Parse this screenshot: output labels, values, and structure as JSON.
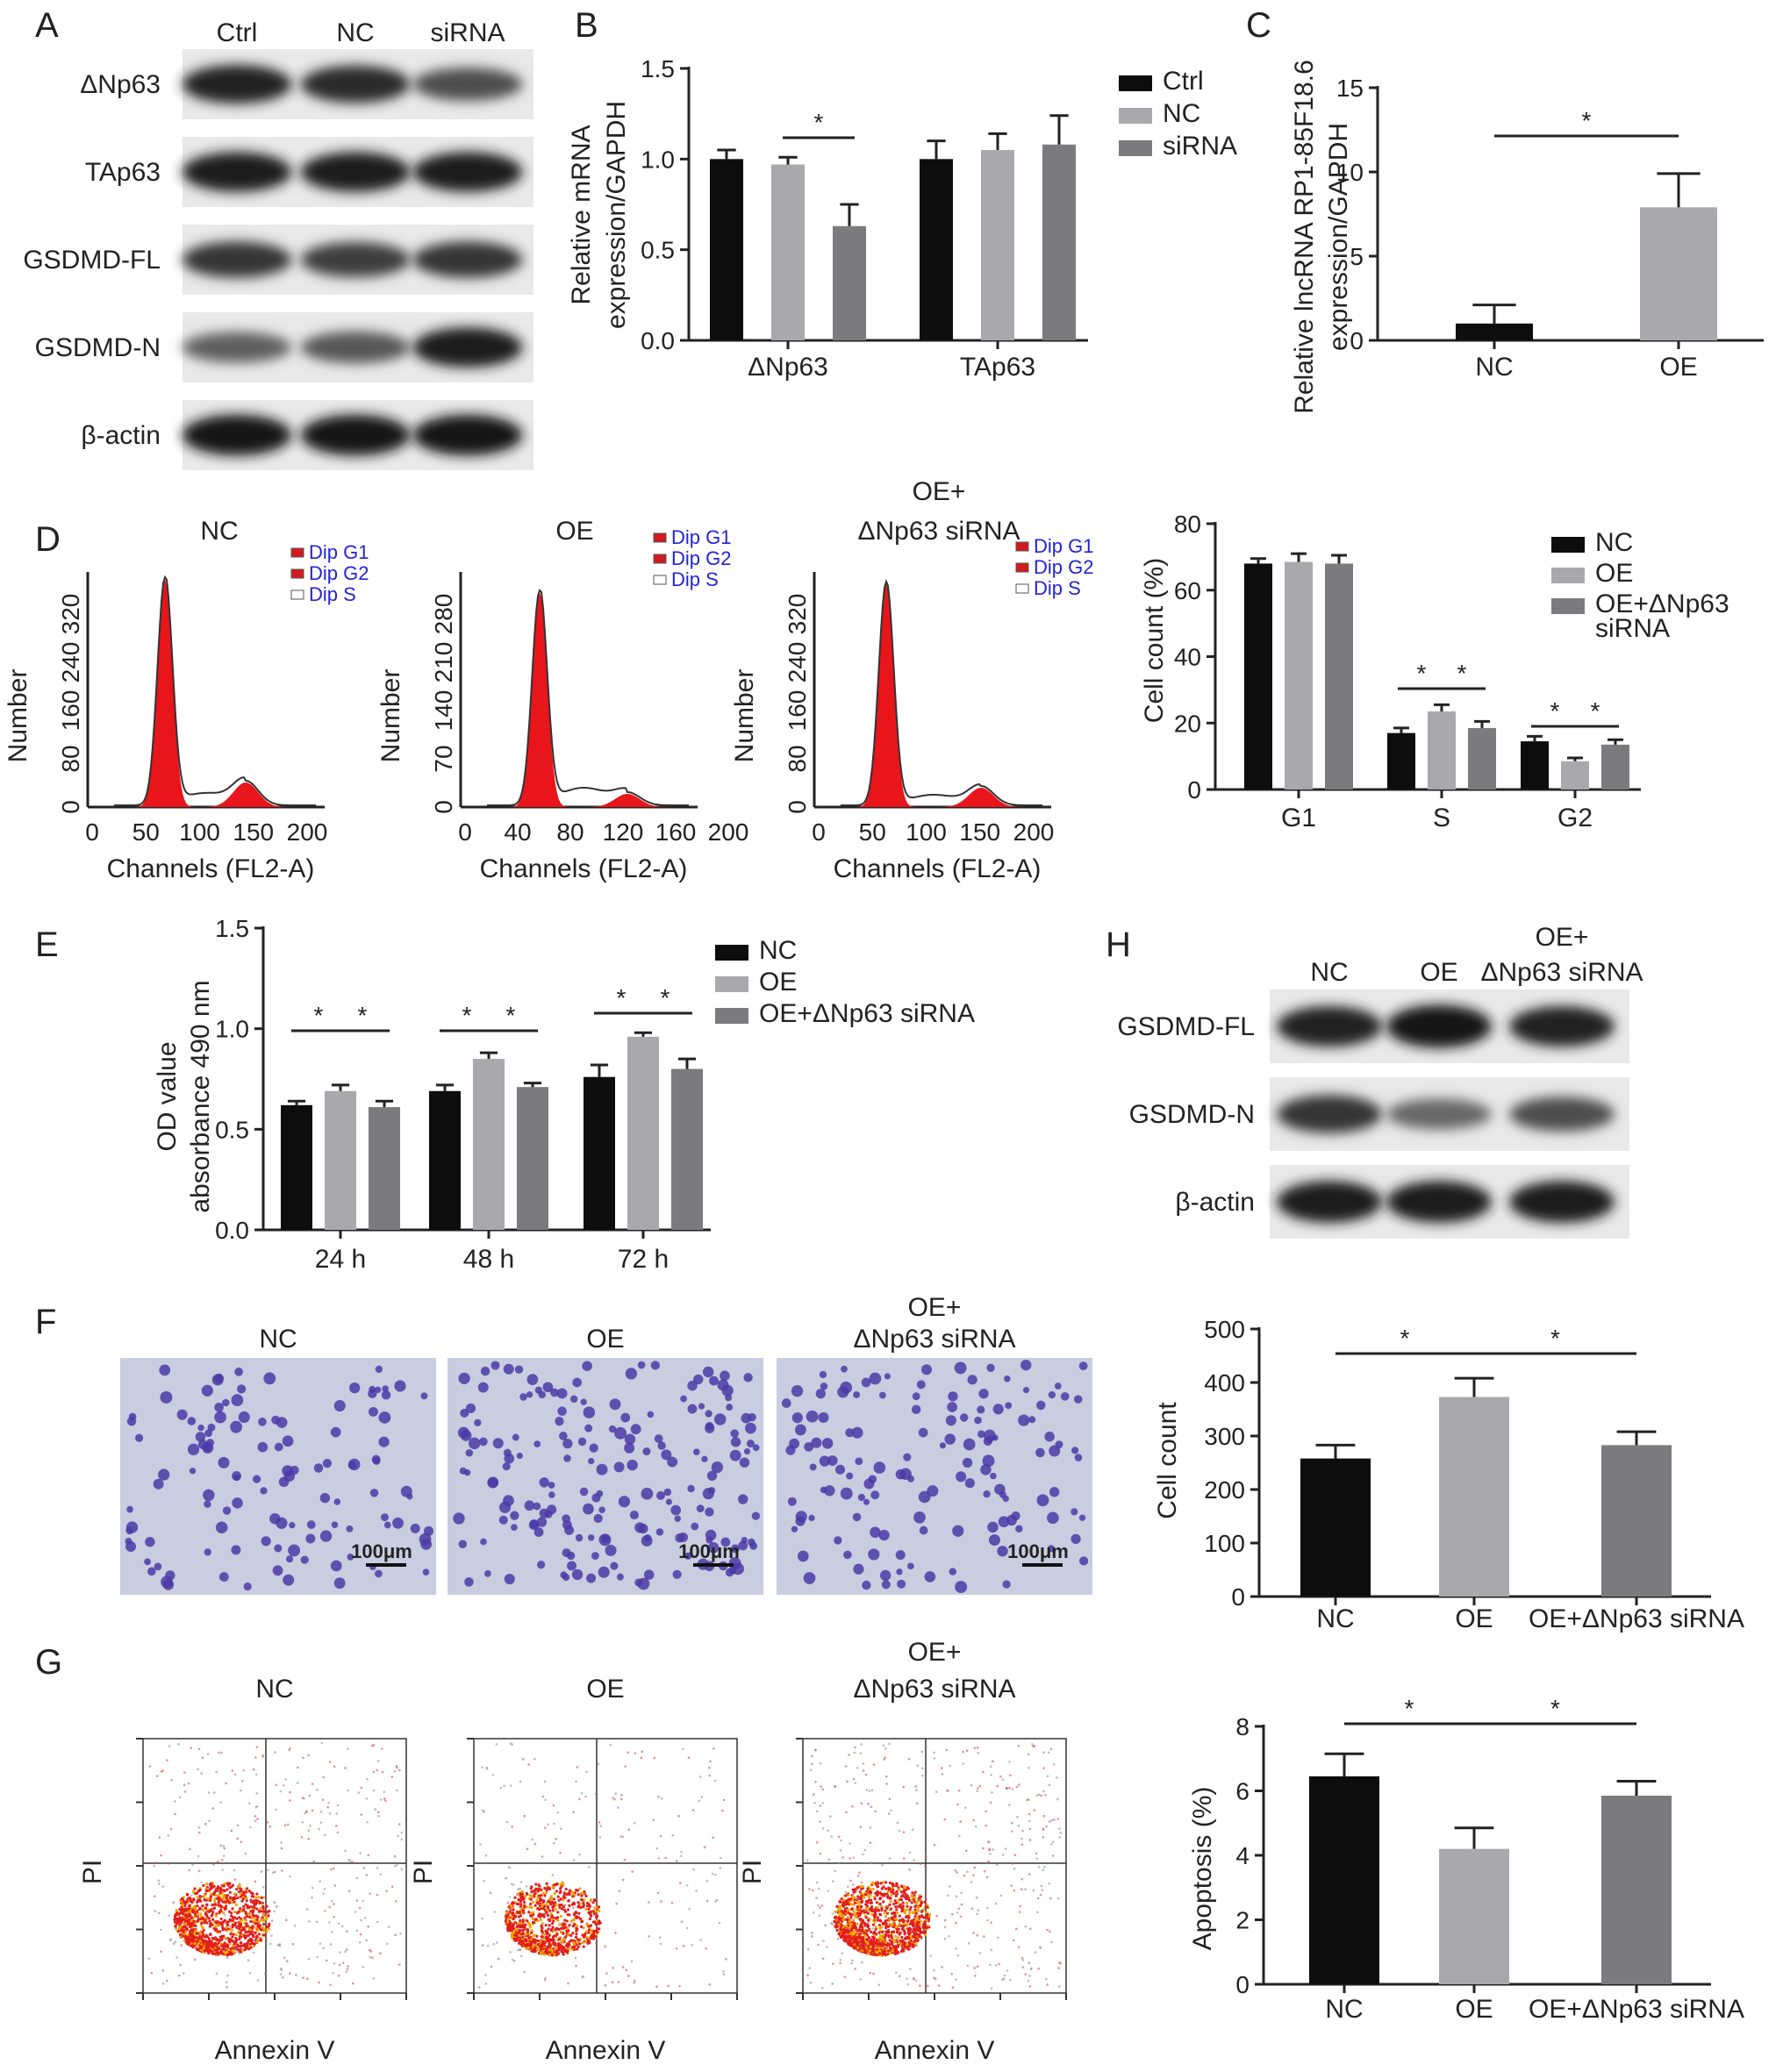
{
  "panels": {
    "A": {
      "label": "A",
      "lanes": [
        "Ctrl",
        "NC",
        "siRNA"
      ],
      "rows": [
        {
          "label": "ΔNp63",
          "intensities": [
            0.85,
            0.8,
            0.6
          ]
        },
        {
          "label": "TAp63",
          "intensities": [
            0.9,
            0.9,
            0.9
          ]
        },
        {
          "label": "GSDMD-FL",
          "intensities": [
            0.75,
            0.7,
            0.75
          ]
        },
        {
          "label": "GSDMD-N",
          "intensities": [
            0.5,
            0.55,
            0.9
          ]
        },
        {
          "label": "β-actin",
          "intensities": [
            0.95,
            0.95,
            0.95
          ]
        }
      ]
    },
    "B": {
      "label": "B",
      "ylabel_line1": "Relative mRNA",
      "ylabel_line2": "expression/GAPDH",
      "yticks": [
        "0.0",
        "0.5",
        "1.0",
        "1.5"
      ],
      "star": "*"
    },
    "C": {
      "label": "C",
      "ylabel_line1": "Relative lncRNA RP1-85F18.6",
      "ylabel_line2": "expression/GAPDH",
      "yticks": [
        "0",
        "5",
        "10",
        "15"
      ],
      "star": "*"
    },
    "D": {
      "label": "D",
      "histograms": [
        {
          "title_line1": "NC",
          "title_line2": "",
          "ylabel": "Number",
          "xlabel": "Channels (FL2-A)",
          "yticks": [
            "0",
            "80",
            "160",
            "240",
            "320"
          ],
          "xticks": [
            "0",
            "50",
            "100",
            "150",
            "200"
          ],
          "legend": [
            "Dip G1",
            "Dip G2",
            "Dip S"
          ]
        },
        {
          "title_line1": "OE",
          "title_line2": "",
          "ylabel": "Number",
          "xlabel": "Channels (FL2-A)",
          "yticks": [
            "0",
            "70",
            "140",
            "210",
            "280"
          ],
          "xticks": [
            "0",
            "40",
            "80",
            "120",
            "160",
            "200"
          ],
          "legend": [
            "Dip G1",
            "Dip G2",
            "Dip S"
          ]
        },
        {
          "title_line1": "OE+",
          "title_line2": "ΔNp63 siRNA",
          "ylabel": "Number",
          "xlabel": "Channels (FL2-A)",
          "yticks": [
            "0",
            "80",
            "160",
            "240",
            "320"
          ],
          "xticks": [
            "0",
            "50",
            "100",
            "150",
            "200"
          ],
          "legend": [
            "Dip G1",
            "Dip G2",
            "Dip S"
          ]
        }
      ],
      "bar_ylabel": "Cell count (%)",
      "bar_yticks": [
        "0",
        "20",
        "40",
        "60",
        "80"
      ],
      "star": "*"
    },
    "E": {
      "label": "E",
      "ylabel_line1": "OD value",
      "ylabel_line2": "absorbance 490 nm",
      "yticks": [
        "0.0",
        "0.5",
        "1.0",
        "1.5"
      ],
      "star": "*"
    },
    "F": {
      "label": "F",
      "images": [
        {
          "title_line1": "NC",
          "title_line2": "",
          "scalebar": "100μm",
          "density": 120
        },
        {
          "title_line1": "OE",
          "title_line2": "",
          "scalebar": "100μm",
          "density": 190
        },
        {
          "title_line1": "OE+",
          "title_line2": "ΔNp63 siRNA",
          "scalebar": "100μm",
          "density": 140
        }
      ],
      "bar_ylabel": "Cell count",
      "bar_yticks": [
        "0",
        "100",
        "200",
        "300",
        "400",
        "500"
      ],
      "star": "*"
    },
    "G": {
      "label": "G",
      "dotplots": [
        {
          "title_line1": "NC",
          "title_line2": "",
          "xlabel": "Annexin V",
          "ylabel": "PI"
        },
        {
          "title_line1": "OE",
          "title_line2": "",
          "xlabel": "Annexin V",
          "ylabel": "PI"
        },
        {
          "title_line1": "OE+",
          "title_line2": "ΔNp63 siRNA",
          "xlabel": "Annexin V",
          "ylabel": "PI"
        }
      ],
      "bar_ylabel": "Apoptosis (%)",
      "bar_yticks": [
        "0",
        "2",
        "4",
        "6",
        "8"
      ],
      "star": "*"
    },
    "H": {
      "label": "H",
      "lane_nc": "NC",
      "lane_oe": "OE",
      "lane_combo_line1": "OE+",
      "lane_combo_line2": "ΔNp63 siRNA",
      "rows": [
        {
          "label": "GSDMD-FL",
          "intensities": [
            0.85,
            0.95,
            0.85
          ]
        },
        {
          "label": "GSDMD-N",
          "intensities": [
            0.75,
            0.45,
            0.6
          ]
        },
        {
          "label": "β-actin",
          "intensities": [
            0.9,
            0.9,
            0.9
          ]
        }
      ]
    }
  },
  "chart_data": [
    {
      "id": "B",
      "type": "bar",
      "categories": [
        "ΔNp63",
        "TAp63"
      ],
      "series": [
        {
          "name": "Ctrl",
          "values": [
            1.0,
            1.0
          ],
          "errors": [
            0.05,
            0.1
          ],
          "color": "#0d0d0d"
        },
        {
          "name": "NC",
          "values": [
            0.97,
            1.05
          ],
          "errors": [
            0.04,
            0.09
          ],
          "color": "#a9a9ad"
        },
        {
          "name": "siRNA",
          "values": [
            0.63,
            1.08
          ],
          "errors": [
            0.12,
            0.16
          ],
          "color": "#7b7b7d"
        }
      ],
      "ylim": [
        0,
        1.5
      ],
      "yticks": [
        0,
        0.5,
        1.0,
        1.5
      ]
    },
    {
      "id": "C",
      "type": "bar",
      "categories": [
        "NC",
        "OE"
      ],
      "series": [
        {
          "values": [
            1.0,
            7.9
          ],
          "errors": [
            1.1,
            2.0
          ],
          "colors": [
            "#0d0d0d",
            "#a9a9ad"
          ]
        }
      ],
      "ylim": [
        0,
        15
      ],
      "yticks": [
        0,
        5,
        10,
        15
      ]
    },
    {
      "id": "D",
      "type": "bar",
      "categories": [
        "G1",
        "S",
        "G2"
      ],
      "series": [
        {
          "name": "NC",
          "values": [
            68,
            17,
            14.5
          ],
          "errors": [
            1.5,
            1.5,
            1.5
          ],
          "color": "#0d0d0d"
        },
        {
          "name": "OE",
          "values": [
            68.5,
            23.5,
            8.5
          ],
          "errors": [
            2.5,
            2,
            1
          ],
          "color": "#a9a9ad"
        },
        {
          "name": "OE+ΔNp63 siRNA",
          "values": [
            68,
            18.5,
            13.5
          ],
          "errors": [
            2.5,
            2,
            1.5
          ],
          "color": "#7b7b7d"
        }
      ],
      "ylim": [
        0,
        80
      ],
      "yticks": [
        0,
        20,
        40,
        60,
        80
      ]
    },
    {
      "id": "E",
      "type": "bar",
      "categories": [
        "24 h",
        "48 h",
        "72 h"
      ],
      "series": [
        {
          "name": "NC",
          "values": [
            0.62,
            0.69,
            0.76
          ],
          "errors": [
            0.02,
            0.03,
            0.06
          ],
          "color": "#0d0d0d"
        },
        {
          "name": "OE",
          "values": [
            0.69,
            0.85,
            0.96
          ],
          "errors": [
            0.03,
            0.03,
            0.02
          ],
          "color": "#a9a9ad"
        },
        {
          "name": "OE+ΔNp63 siRNA",
          "values": [
            0.61,
            0.71,
            0.8
          ],
          "errors": [
            0.03,
            0.02,
            0.05
          ],
          "color": "#7b7b7d"
        }
      ],
      "ylim": [
        0,
        1.5
      ],
      "yticks": [
        0,
        0.5,
        1.0,
        1.5
      ]
    },
    {
      "id": "F",
      "type": "bar",
      "categories": [
        "NC",
        "OE",
        "OE+ΔNp63 siRNA"
      ],
      "series": [
        {
          "values": [
            258,
            373,
            283
          ],
          "errors": [
            25,
            35,
            25
          ],
          "colors": [
            "#0d0d0d",
            "#a9a9ad",
            "#7b7b7d"
          ]
        }
      ],
      "ylim": [
        0,
        500
      ],
      "yticks": [
        0,
        100,
        200,
        300,
        400,
        500
      ]
    },
    {
      "id": "G",
      "type": "bar",
      "categories": [
        "NC",
        "OE",
        "OE+ΔNp63 siRNA"
      ],
      "series": [
        {
          "values": [
            6.45,
            4.2,
            5.85
          ],
          "errors": [
            0.7,
            0.65,
            0.45
          ],
          "colors": [
            "#0d0d0d",
            "#a9a9ad",
            "#7b7b7d"
          ]
        }
      ],
      "ylim": [
        0,
        8
      ],
      "yticks": [
        0,
        2,
        4,
        6,
        8
      ]
    }
  ]
}
